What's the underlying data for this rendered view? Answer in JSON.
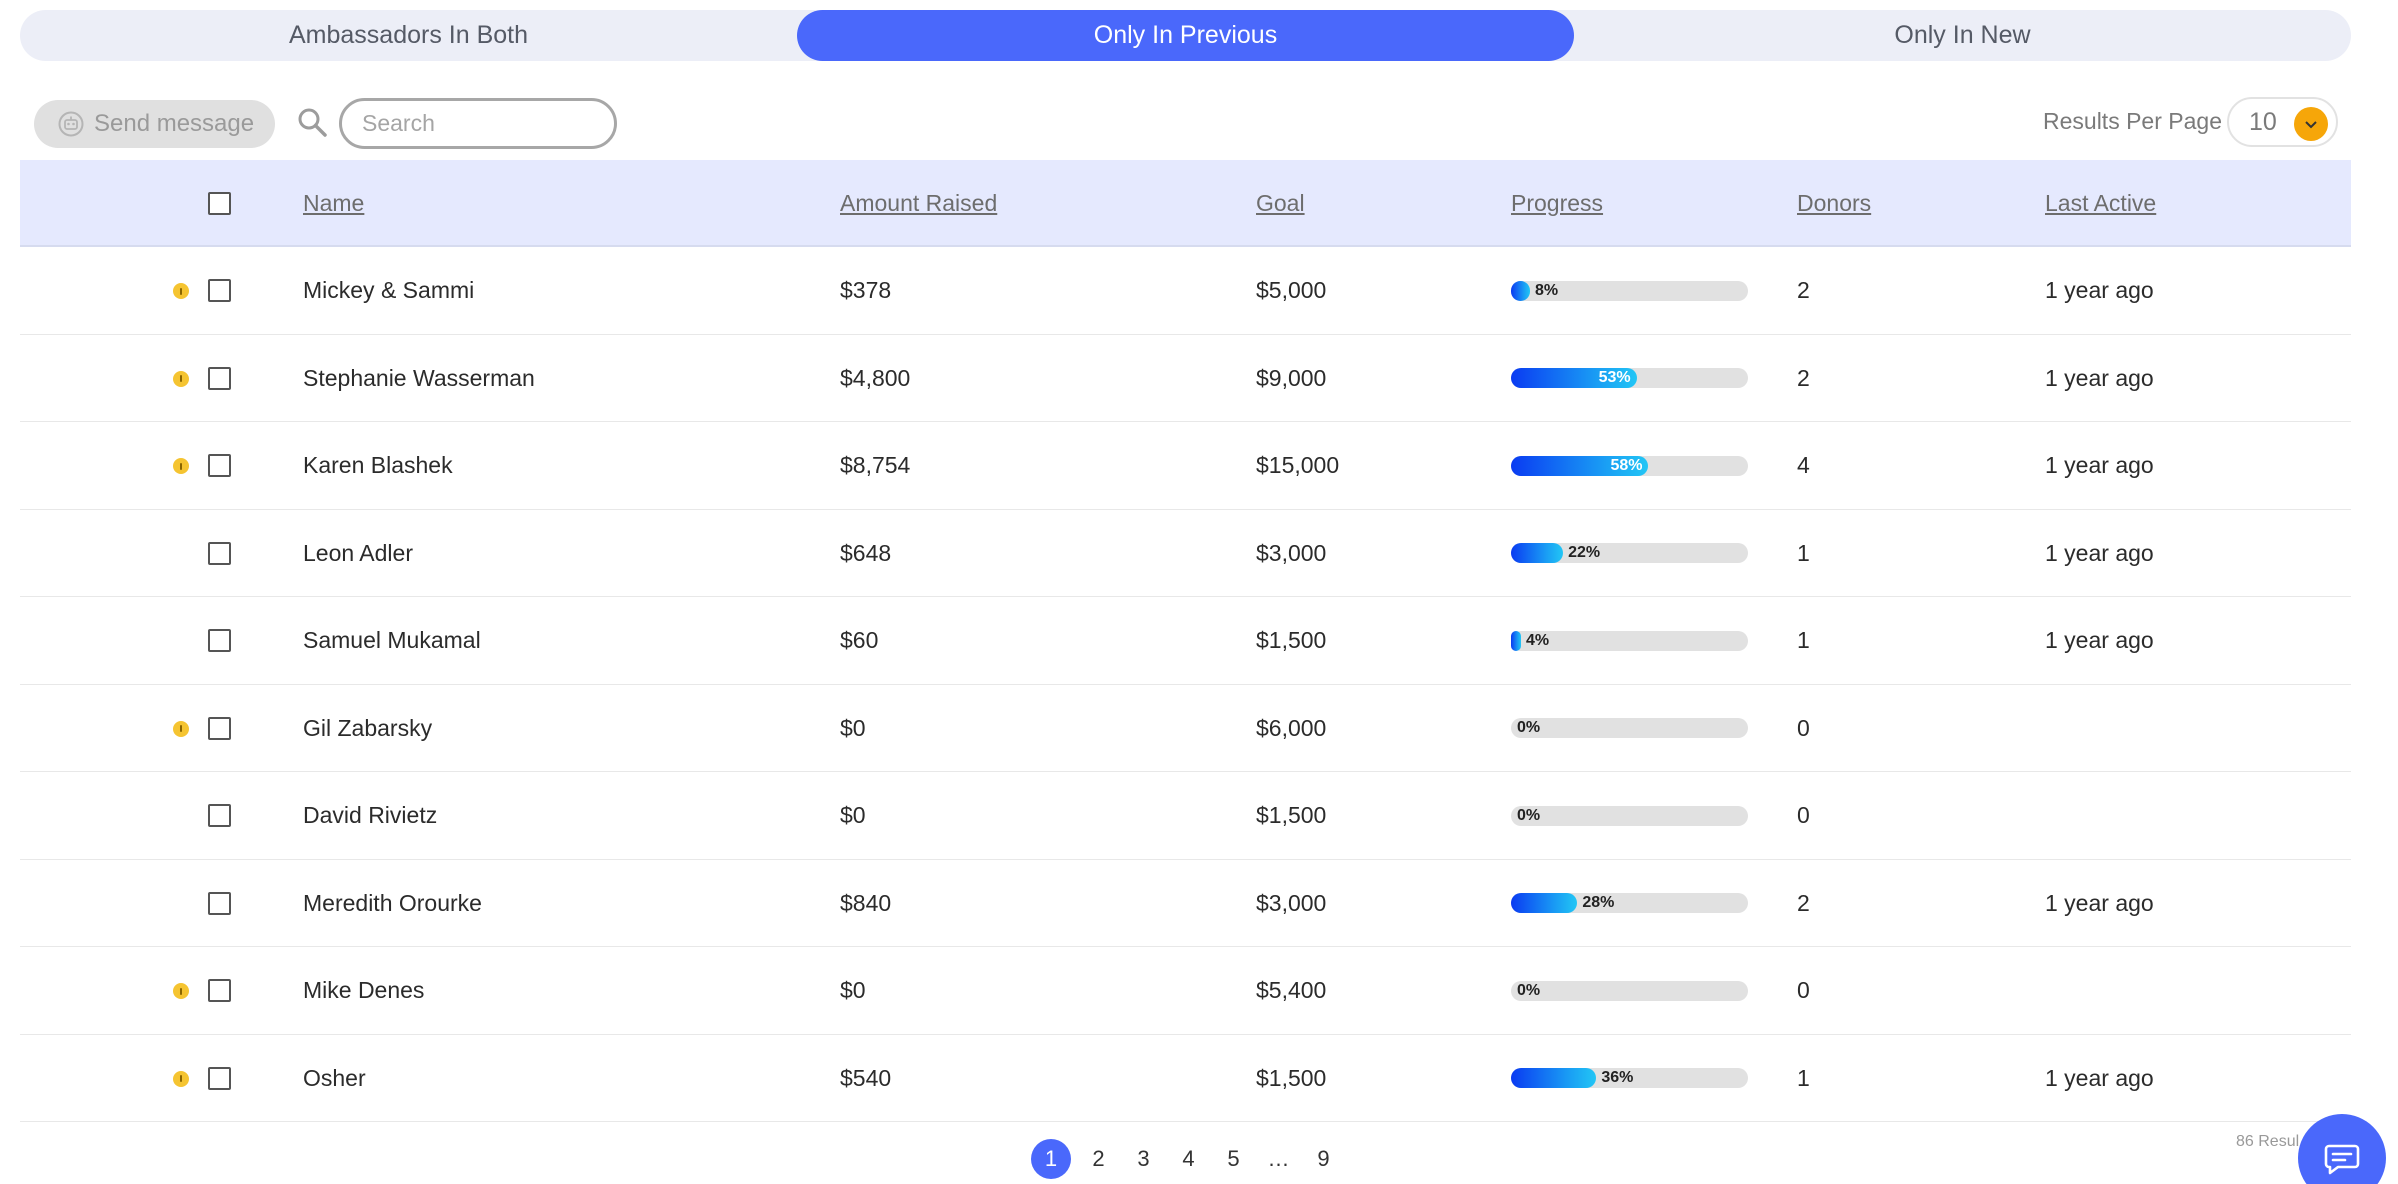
{
  "tabs": [
    {
      "label": "Ambassadors In Both",
      "active": false
    },
    {
      "label": "Only In Previous",
      "active": true
    },
    {
      "label": "Only In New",
      "active": false
    }
  ],
  "toolbar": {
    "send_message_label": "Send message",
    "send_message_icon": "robot-icon",
    "search_icon": "search-icon",
    "search_placeholder": "Search",
    "search_value": "",
    "results_per_page_label": "Results Per Page",
    "results_per_page_value": "10"
  },
  "table": {
    "headers": [
      "Name",
      "Amount Raised",
      "Goal",
      "Progress",
      "Donors",
      "Last Active"
    ],
    "rows": [
      {
        "warning": true,
        "name": "Mickey & Sammi",
        "amount": "$378",
        "goal": "$5,000",
        "progress": 8,
        "progress_label": "8%",
        "donors": "2",
        "last_active": "1 year ago"
      },
      {
        "warning": true,
        "name": "Stephanie Wasserman",
        "amount": "$4,800",
        "goal": "$9,000",
        "progress": 53,
        "progress_label": "53%",
        "donors": "2",
        "last_active": "1 year ago"
      },
      {
        "warning": true,
        "name": "Karen Blashek",
        "amount": "$8,754",
        "goal": "$15,000",
        "progress": 58,
        "progress_label": "58%",
        "donors": "4",
        "last_active": "1 year ago"
      },
      {
        "warning": false,
        "name": "Leon Adler",
        "amount": "$648",
        "goal": "$3,000",
        "progress": 22,
        "progress_label": "22%",
        "donors": "1",
        "last_active": "1 year ago"
      },
      {
        "warning": false,
        "name": "Samuel Mukamal",
        "amount": "$60",
        "goal": "$1,500",
        "progress": 4,
        "progress_label": "4%",
        "donors": "1",
        "last_active": "1 year ago"
      },
      {
        "warning": true,
        "name": "Gil Zabarsky",
        "amount": "$0",
        "goal": "$6,000",
        "progress": 0,
        "progress_label": "0%",
        "donors": "0",
        "last_active": ""
      },
      {
        "warning": false,
        "name": "David Rivietz",
        "amount": "$0",
        "goal": "$1,500",
        "progress": 0,
        "progress_label": "0%",
        "donors": "0",
        "last_active": ""
      },
      {
        "warning": false,
        "name": "Meredith Orourke",
        "amount": "$840",
        "goal": "$3,000",
        "progress": 28,
        "progress_label": "28%",
        "donors": "2",
        "last_active": "1 year ago"
      },
      {
        "warning": true,
        "name": "Mike Denes",
        "amount": "$0",
        "goal": "$5,400",
        "progress": 0,
        "progress_label": "0%",
        "donors": "0",
        "last_active": ""
      },
      {
        "warning": true,
        "name": "Osher",
        "amount": "$540",
        "goal": "$1,500",
        "progress": 36,
        "progress_label": "36%",
        "donors": "1",
        "last_active": "1 year ago"
      }
    ]
  },
  "pagination": {
    "pages": [
      "1",
      "2",
      "3",
      "4",
      "5",
      "…",
      "9"
    ],
    "current": "1",
    "results_text": "86 Resul"
  },
  "chat_icon": "chat-icon",
  "colors": {
    "accent": "#4a68fb",
    "warning": "#f5c431",
    "dropdown_accent": "#f6a609",
    "header_bg": "#e5e9fe"
  }
}
